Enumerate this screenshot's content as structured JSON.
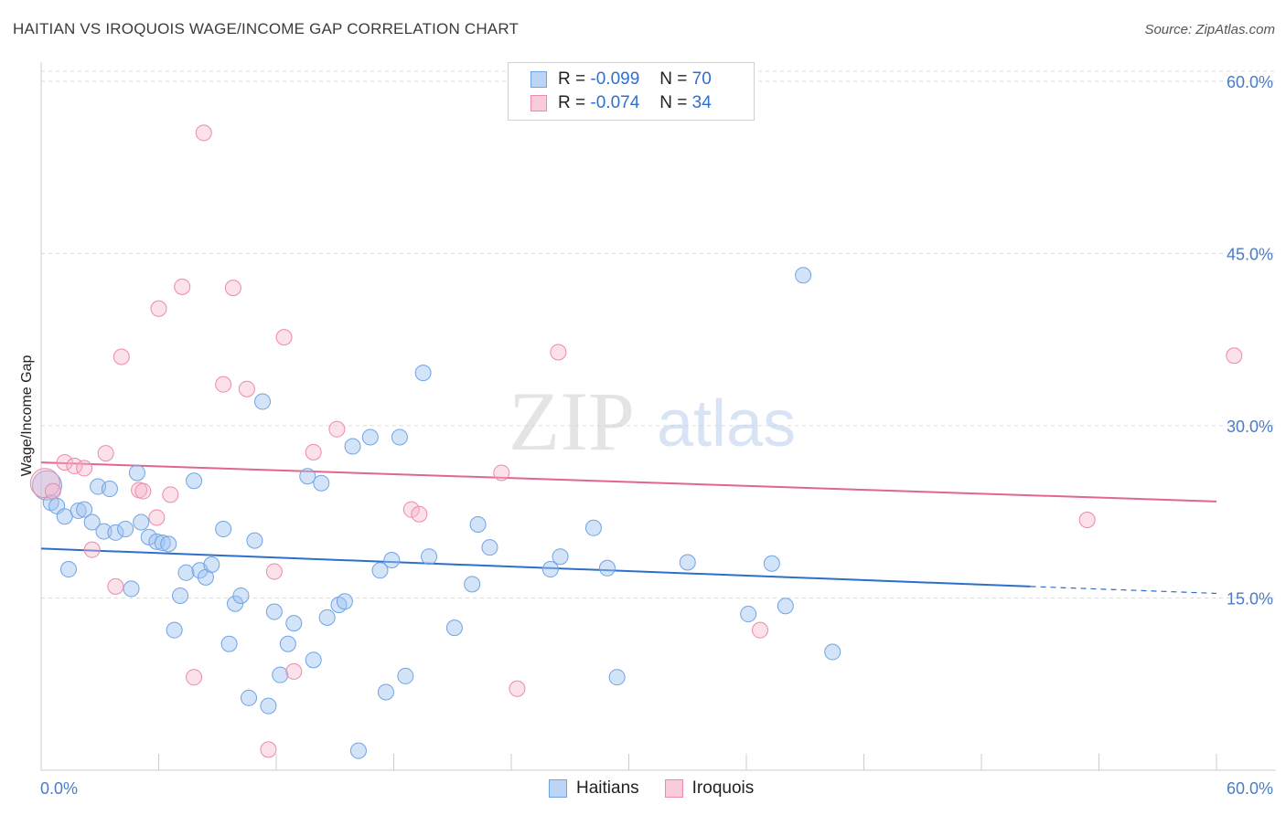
{
  "title": "HAITIAN VS IROQUOIS WAGE/INCOME GAP CORRELATION CHART",
  "source": "Source: ZipAtlas.com",
  "watermark": {
    "zip": "ZIP",
    "atlas": "atlas"
  },
  "legend": {
    "rows": [
      {
        "r_label": "R = ",
        "r_value": "-0.099",
        "n_label": "N = ",
        "n_value": "70"
      },
      {
        "r_label": "R = ",
        "r_value": "-0.074",
        "n_label": "N = ",
        "n_value": "34"
      }
    ]
  },
  "chart_data": {
    "type": "scatter",
    "ylabel": "Wage/Income Gap",
    "xlim": [
      0,
      60
    ],
    "ylim": [
      0,
      61.5
    ],
    "x_tick_labels": [
      "0.0%",
      "60.0%"
    ],
    "y_ticks": [
      15,
      30,
      45,
      60
    ],
    "y_tick_labels": [
      "15.0%",
      "30.0%",
      "45.0%",
      "60.0%"
    ],
    "grid": true,
    "legend_position": "top-center",
    "colors": {
      "haitians": "#6fa3e6",
      "iroquois": "#ee89a8",
      "haitians_line": "#2e6fcc",
      "iroquois_line": "#e0668e"
    },
    "series": [
      {
        "name": "Haitians",
        "trend": {
          "x0": 0,
          "y0": 19.3,
          "x1": 50.5,
          "y1": 16.0,
          "dash_to_x": 60,
          "dash_to_y": 15.4
        },
        "points": [
          [
            0.3,
            24.8
          ],
          [
            0.5,
            23.3
          ],
          [
            0.8,
            23.0
          ],
          [
            1.2,
            22.1
          ],
          [
            1.4,
            17.5
          ],
          [
            1.9,
            22.6
          ],
          [
            2.2,
            22.7
          ],
          [
            2.6,
            21.6
          ],
          [
            2.9,
            24.7
          ],
          [
            3.2,
            20.8
          ],
          [
            3.5,
            24.5
          ],
          [
            3.8,
            20.7
          ],
          [
            4.3,
            21.0
          ],
          [
            4.6,
            15.8
          ],
          [
            4.9,
            25.9
          ],
          [
            5.1,
            21.6
          ],
          [
            5.5,
            20.3
          ],
          [
            5.9,
            19.9
          ],
          [
            6.2,
            19.8
          ],
          [
            6.5,
            19.7
          ],
          [
            6.8,
            12.2
          ],
          [
            7.1,
            15.2
          ],
          [
            7.4,
            17.2
          ],
          [
            7.8,
            25.2
          ],
          [
            8.1,
            17.4
          ],
          [
            8.4,
            16.8
          ],
          [
            8.7,
            17.9
          ],
          [
            9.3,
            21.0
          ],
          [
            9.6,
            11.0
          ],
          [
            9.9,
            14.5
          ],
          [
            10.2,
            15.2
          ],
          [
            10.6,
            6.3
          ],
          [
            10.9,
            20.0
          ],
          [
            11.3,
            32.1
          ],
          [
            11.6,
            5.6
          ],
          [
            11.9,
            13.8
          ],
          [
            12.2,
            8.3
          ],
          [
            12.6,
            11.0
          ],
          [
            12.9,
            12.8
          ],
          [
            13.6,
            25.6
          ],
          [
            13.9,
            9.6
          ],
          [
            14.3,
            25.0
          ],
          [
            14.6,
            13.3
          ],
          [
            15.2,
            14.4
          ],
          [
            15.5,
            14.7
          ],
          [
            15.9,
            28.2
          ],
          [
            16.2,
            1.7
          ],
          [
            16.8,
            29.0
          ],
          [
            17.3,
            17.4
          ],
          [
            17.6,
            6.8
          ],
          [
            17.9,
            18.3
          ],
          [
            18.3,
            29.0
          ],
          [
            18.6,
            8.2
          ],
          [
            19.5,
            34.6
          ],
          [
            19.8,
            18.6
          ],
          [
            21.1,
            12.4
          ],
          [
            22.0,
            16.2
          ],
          [
            22.3,
            21.4
          ],
          [
            22.9,
            19.4
          ],
          [
            26.0,
            17.5
          ],
          [
            26.5,
            18.6
          ],
          [
            28.2,
            21.1
          ],
          [
            28.9,
            17.6
          ],
          [
            29.4,
            8.1
          ],
          [
            33.0,
            18.1
          ],
          [
            36.1,
            13.6
          ],
          [
            37.3,
            18.0
          ],
          [
            38.0,
            14.3
          ],
          [
            38.9,
            43.1
          ],
          [
            40.4,
            10.3
          ]
        ]
      },
      {
        "name": "Iroquois",
        "trend": {
          "x0": 0,
          "y0": 26.8,
          "x1": 60,
          "y1": 23.4
        },
        "points": [
          [
            0.2,
            25.0
          ],
          [
            0.6,
            24.3
          ],
          [
            1.2,
            26.8
          ],
          [
            1.7,
            26.5
          ],
          [
            2.2,
            26.3
          ],
          [
            2.6,
            19.2
          ],
          [
            3.3,
            27.6
          ],
          [
            3.8,
            16.0
          ],
          [
            4.1,
            36.0
          ],
          [
            5.0,
            24.4
          ],
          [
            5.2,
            24.3
          ],
          [
            5.9,
            22.0
          ],
          [
            6.0,
            40.2
          ],
          [
            6.6,
            24.0
          ],
          [
            7.2,
            42.1
          ],
          [
            7.8,
            8.1
          ],
          [
            8.3,
            55.5
          ],
          [
            9.3,
            33.6
          ],
          [
            9.8,
            42.0
          ],
          [
            10.5,
            33.2
          ],
          [
            11.6,
            1.8
          ],
          [
            11.9,
            17.3
          ],
          [
            12.4,
            37.7
          ],
          [
            12.9,
            8.6
          ],
          [
            13.9,
            27.7
          ],
          [
            15.1,
            29.7
          ],
          [
            18.9,
            22.7
          ],
          [
            19.3,
            22.3
          ],
          [
            23.5,
            25.9
          ],
          [
            24.3,
            7.1
          ],
          [
            26.4,
            36.4
          ],
          [
            36.7,
            12.2
          ],
          [
            53.4,
            21.8
          ],
          [
            60.9,
            36.1
          ]
        ]
      }
    ]
  },
  "bottom_legend": [
    "Haitians",
    "Iroquois"
  ]
}
